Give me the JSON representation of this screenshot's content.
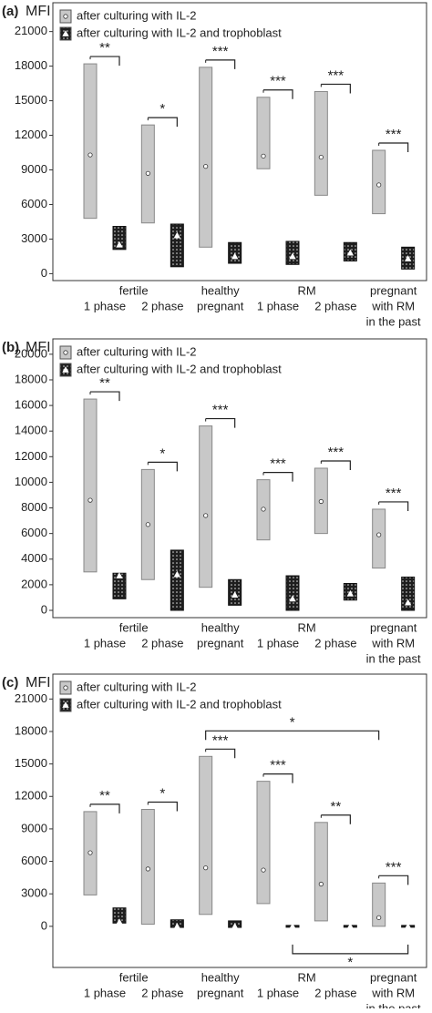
{
  "chart_data": [
    {
      "type": "range-box",
      "panel_label": "(a)",
      "y_label": "MFI",
      "categories": [
        [
          "1 phase"
        ],
        [
          "2 phase"
        ],
        [
          "healthy",
          "pregnant"
        ],
        [
          "1 phase"
        ],
        [
          "2 phase"
        ],
        [
          "pregnant",
          "with RM",
          "in the past"
        ]
      ],
      "groups": [
        {
          "label": "fertile",
          "categories": [
            0,
            1
          ]
        },
        {
          "label": "RM",
          "categories": [
            3,
            4
          ]
        }
      ],
      "ylim": [
        -600,
        23500
      ],
      "yticks": [
        0,
        3000,
        6000,
        9000,
        12000,
        15000,
        18000,
        21000
      ],
      "series": [
        {
          "name": "after culturing with IL-2",
          "color": "#c8c8c8",
          "marker": "circle",
          "max": [
            18200,
            12900,
            17900,
            15300,
            15800,
            10700
          ],
          "min": [
            4800,
            4400,
            2300,
            9100,
            6800,
            5200
          ],
          "median": [
            10300,
            8700,
            9300,
            10200,
            10100,
            7700
          ]
        },
        {
          "name": "after culturing with IL-2 and trophoblast",
          "color": "#1e1e1e",
          "pattern": "dotted",
          "marker": "triangle",
          "max": [
            4100,
            4300,
            2700,
            2800,
            2700,
            2300
          ],
          "min": [
            2100,
            600,
            900,
            800,
            1100,
            400
          ],
          "median": [
            2500,
            3300,
            1500,
            1500,
            1800,
            1300
          ]
        }
      ],
      "brackets": [
        {
          "label": "**",
          "category": 0
        },
        {
          "label": "*",
          "category": 1
        },
        {
          "label": "***",
          "category": 2
        },
        {
          "label": "***",
          "category": 3
        },
        {
          "label": "***",
          "category": 4
        },
        {
          "label": "***",
          "category": 5
        }
      ]
    },
    {
      "type": "range-box",
      "panel_label": "(b)",
      "y_label": "MFI",
      "categories": [
        [
          "1 phase"
        ],
        [
          "2 phase"
        ],
        [
          "healthy",
          "pregnant"
        ],
        [
          "1 phase"
        ],
        [
          "2 phase"
        ],
        [
          "pregnant",
          "with RM",
          "in the past"
        ]
      ],
      "groups": [
        {
          "label": "fertile",
          "categories": [
            0,
            1
          ]
        },
        {
          "label": "RM",
          "categories": [
            3,
            4
          ]
        }
      ],
      "ylim": [
        -570,
        21200
      ],
      "yticks": [
        0,
        2000,
        4000,
        6000,
        8000,
        10000,
        12000,
        14000,
        16000,
        18000,
        20000
      ],
      "series": [
        {
          "name": "after culturing with IL-2",
          "color": "#c8c8c8",
          "marker": "circle",
          "max": [
            16500,
            11000,
            14400,
            10200,
            11100,
            7900
          ],
          "min": [
            3000,
            2400,
            1800,
            5500,
            6000,
            3300
          ],
          "median": [
            8600,
            6700,
            7400,
            7900,
            8500,
            5900
          ]
        },
        {
          "name": "after culturing with IL-2 and trophoblast",
          "color": "#1e1e1e",
          "pattern": "dotted",
          "marker": "triangle",
          "max": [
            2900,
            4700,
            2400,
            2700,
            2100,
            2600
          ],
          "min": [
            900,
            0,
            400,
            0,
            800,
            0
          ],
          "median": [
            2700,
            2800,
            1200,
            900,
            1300,
            600
          ]
        }
      ],
      "brackets": [
        {
          "label": "**",
          "category": 0
        },
        {
          "label": "*",
          "category": 1
        },
        {
          "label": "***",
          "category": 2
        },
        {
          "label": "***",
          "category": 3
        },
        {
          "label": "***",
          "category": 4
        },
        {
          "label": "***",
          "category": 5
        }
      ]
    },
    {
      "type": "range-box",
      "panel_label": "(c)",
      "y_label": "MFI",
      "categories": [
        [
          "1 phase"
        ],
        [
          "2 phase"
        ],
        [
          "healthy",
          "pregnant"
        ],
        [
          "1 phase"
        ],
        [
          "2 phase"
        ],
        [
          "pregnant",
          "with RM",
          "in the past"
        ]
      ],
      "groups": [
        {
          "label": "fertile",
          "categories": [
            0,
            1
          ]
        },
        {
          "label": "RM",
          "categories": [
            3,
            4
          ]
        }
      ],
      "ylim": [
        -3800,
        23300
      ],
      "yticks": [
        0,
        3000,
        6000,
        9000,
        12000,
        15000,
        18000,
        21000
      ],
      "series": [
        {
          "name": "after culturing with IL-2",
          "color": "#c8c8c8",
          "marker": "circle",
          "max": [
            10600,
            10800,
            15700,
            13400,
            9600,
            4000
          ],
          "min": [
            2900,
            200,
            1100,
            2100,
            500,
            0
          ],
          "median": [
            6800,
            5300,
            5400,
            5200,
            3900,
            800
          ]
        },
        {
          "name": "after culturing with IL-2 and trophoblast",
          "color": "#1e1e1e",
          "pattern": "dotted",
          "marker": "triangle",
          "max": [
            1700,
            600,
            500,
            0,
            0,
            0
          ],
          "min": [
            300,
            -100,
            -100,
            0,
            0,
            0
          ],
          "median": [
            400,
            0,
            0,
            0,
            0,
            0
          ]
        }
      ],
      "brackets": [
        {
          "label": "**",
          "category": 0
        },
        {
          "label": "*",
          "category": 1
        },
        {
          "label": "***",
          "category": 2
        },
        {
          "label": "***",
          "category": 3
        },
        {
          "label": "**",
          "category": 4
        },
        {
          "label": "***",
          "category": 5
        },
        {
          "label": "*",
          "from": 2,
          "to": 5,
          "series": 0,
          "level": "top"
        },
        {
          "label": "*",
          "from": 3,
          "to": 5,
          "series": 1,
          "level": "bottom"
        }
      ]
    }
  ]
}
